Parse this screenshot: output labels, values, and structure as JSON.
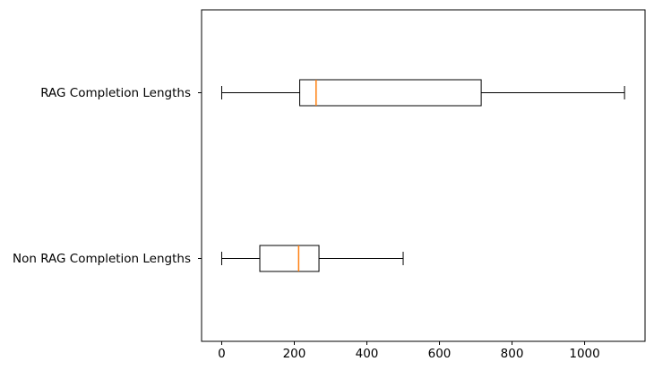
{
  "chart_data": {
    "type": "boxplot",
    "orientation": "horizontal",
    "title": "",
    "xlabel": "",
    "ylabel": "",
    "grid": false,
    "legend": "none",
    "xlim": [
      -55.5,
      1166.5
    ],
    "x_ticks": [
      0,
      200,
      400,
      600,
      800,
      1000
    ],
    "x_tick_labels": [
      "0",
      "200",
      "400",
      "600",
      "800",
      "1000"
    ],
    "categories_top_to_bottom": [
      "RAG Completion Lengths",
      "Non RAG Completion Lengths"
    ],
    "series": [
      {
        "name": "RAG Completion Lengths",
        "whisker_low": 0,
        "q1": 215,
        "median": 260,
        "q3": 715,
        "whisker_high": 1110
      },
      {
        "name": "Non RAG Completion Lengths",
        "whisker_low": 0,
        "q1": 105,
        "median": 212,
        "q3": 268,
        "whisker_high": 500
      }
    ],
    "colors": {
      "box_stroke": "#000000",
      "median": "#ff7f0e",
      "axis": "#000000",
      "text": "#000000",
      "background": "#ffffff"
    }
  }
}
